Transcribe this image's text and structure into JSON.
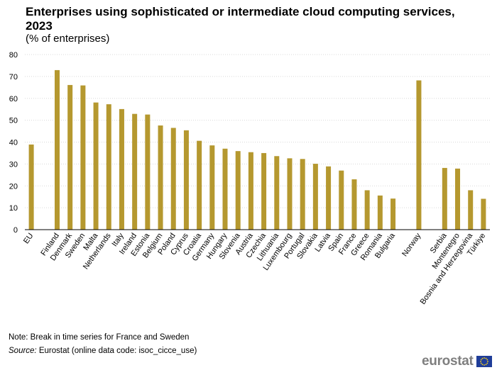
{
  "header": {
    "title": "Enterprises using sophisticated or intermediate cloud computing services, 2023",
    "subtitle": "(% of enterprises)"
  },
  "chart_data": {
    "type": "bar",
    "title": "Enterprises using sophisticated or intermediate cloud computing services, 2023",
    "subtitle": "(% of enterprises)",
    "xlabel": "",
    "ylabel": "",
    "ylim": [
      0,
      80
    ],
    "yticks": [
      0,
      10,
      20,
      30,
      40,
      50,
      60,
      70,
      80
    ],
    "grid": true,
    "bar_color": "#b5982f",
    "categories": [
      "EU",
      "",
      "Finland",
      "Denmark",
      "Sweden",
      "Malta",
      "Netherlands",
      "Italy",
      "Ireland",
      "Estonia",
      "Belgium",
      "Poland",
      "Cyprus",
      "Croatia",
      "Germany",
      "Hungary",
      "Slovenia",
      "Austria",
      "Czechia",
      "Lithuania",
      "Luxembourg",
      "Portugal",
      "Slovakia",
      "Latvia",
      "Spain",
      "France",
      "Greece",
      "Romania",
      "Bulgaria",
      "",
      "Norway",
      "",
      "Serbia",
      "Montenegro",
      "Bosnia and Herzegovina",
      "Türkiye"
    ],
    "values": [
      38.9,
      null,
      72.9,
      66.1,
      65.9,
      58.1,
      57.3,
      55.1,
      52.9,
      52.6,
      47.6,
      46.5,
      45.4,
      40.6,
      38.5,
      37.0,
      35.9,
      35.4,
      35.0,
      33.6,
      32.6,
      32.3,
      30.1,
      28.9,
      27.0,
      23.0,
      18.0,
      15.6,
      14.2,
      null,
      68.2,
      null,
      28.2,
      27.9,
      18.0,
      14.1
    ]
  },
  "footer": {
    "note": "Note: Break in time series for France and Sweden",
    "source_label": "Source:",
    "source_text": " Eurostat (online data code: isoc_cicce_use)",
    "logo": "eurostat"
  }
}
